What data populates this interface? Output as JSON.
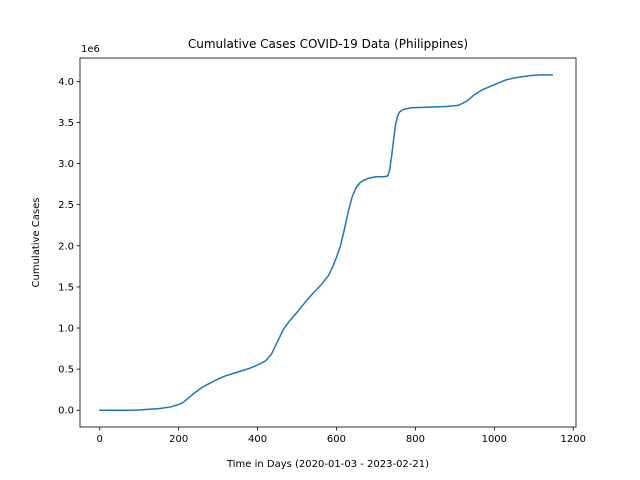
{
  "chart_data": {
    "type": "line",
    "title": "Cumulative Cases COVID-19 Data (Philippines)",
    "xlabel": "Time in Days (2020-01-03 - 2023-02-21)",
    "ylabel": "Cumulative Cases",
    "y_offset_label": "1e6",
    "xlim": [
      -50,
      1207
    ],
    "ylim": [
      -0.204,
      4.285
    ],
    "x_ticks": [
      0,
      200,
      400,
      600,
      800,
      1000,
      1200
    ],
    "x_tick_labels": [
      "0",
      "200",
      "400",
      "600",
      "800",
      "1000",
      "1200"
    ],
    "y_ticks": [
      0.0,
      0.5,
      1.0,
      1.5,
      2.0,
      2.5,
      3.0,
      3.5,
      4.0
    ],
    "y_tick_labels": [
      "0.0",
      "0.5",
      "1.0",
      "1.5",
      "2.0",
      "2.5",
      "3.0",
      "3.5",
      "4.0"
    ],
    "grid": false,
    "line_color": "#1f77b4",
    "series": [
      {
        "x": [
          0,
          50,
          80,
          100,
          120,
          150,
          180,
          200,
          210,
          220,
          240,
          260,
          280,
          300,
          320,
          340,
          360,
          380,
          400,
          420,
          435,
          445,
          455,
          465,
          480,
          500,
          520,
          540,
          560,
          580,
          590,
          600,
          610,
          620,
          630,
          640,
          650,
          660,
          670,
          680,
          700,
          720,
          730,
          735,
          740,
          745,
          750,
          755,
          760,
          770,
          790,
          820,
          850,
          880,
          910,
          930,
          950,
          970,
          1000,
          1030,
          1060,
          1090,
          1120,
          1147
        ],
        "y": [
          0.0,
          0.0,
          0.0,
          0.003,
          0.01,
          0.02,
          0.04,
          0.07,
          0.09,
          0.13,
          0.21,
          0.28,
          0.33,
          0.38,
          0.42,
          0.45,
          0.48,
          0.51,
          0.55,
          0.6,
          0.68,
          0.78,
          0.88,
          0.98,
          1.08,
          1.19,
          1.31,
          1.42,
          1.52,
          1.64,
          1.74,
          1.86,
          2.0,
          2.2,
          2.42,
          2.6,
          2.71,
          2.77,
          2.8,
          2.82,
          2.84,
          2.84,
          2.85,
          2.93,
          3.1,
          3.3,
          3.48,
          3.58,
          3.63,
          3.66,
          3.68,
          3.685,
          3.69,
          3.695,
          3.71,
          3.76,
          3.84,
          3.9,
          3.96,
          4.02,
          4.05,
          4.07,
          4.08,
          4.08
        ]
      }
    ]
  }
}
